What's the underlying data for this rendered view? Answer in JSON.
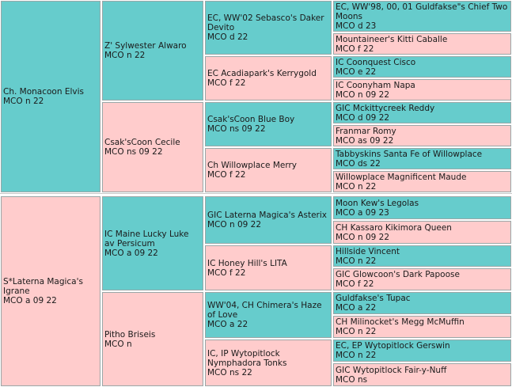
{
  "cats": {
    "s": {
      "name": "Ch. Monacoon Elvis",
      "code": "MCO n 22",
      "sex": "m"
    },
    "ss": {
      "name": "Z' Sylwester Alwaro",
      "code": "MCO n 22",
      "sex": "m"
    },
    "sd": {
      "name": "Csak'sCoon Cecile",
      "code": "MCO ns 09 22",
      "sex": "f"
    },
    "sss": {
      "name": "EC, WW'02 Sebasco's Daker Devito",
      "code": "MCO d 22",
      "sex": "m"
    },
    "ssd": {
      "name": "EC Acadiapark's Kerrygold",
      "code": "MCO f 22",
      "sex": "f"
    },
    "sds": {
      "name": "Csak'sCoon Blue Boy",
      "code": "MCO ns 09 22",
      "sex": "m"
    },
    "sdd": {
      "name": "Ch Willowplace Merry",
      "code": "MCO f 22",
      "sex": "f"
    },
    "ssss": {
      "name": "EC, WW'98, 00, 01 Guldfakse\"s Chief Two Moons",
      "code": "MCO d 23",
      "sex": "m"
    },
    "sssd": {
      "name": "Mountaineer's Kitti Caballe",
      "code": "MCO f 22",
      "sex": "f"
    },
    "ssds": {
      "name": "IC Coonquest Cisco",
      "code": "MCO e 22",
      "sex": "m"
    },
    "ssdd": {
      "name": "IC Coonyham Napa",
      "code": "MCO n 09 22",
      "sex": "f"
    },
    "sdss": {
      "name": "GIC Mckittycreek Reddy",
      "code": "MCO d 09 22",
      "sex": "m"
    },
    "sdsd": {
      "name": "Franmar Romy",
      "code": "MCO as 09 22",
      "sex": "f"
    },
    "sdds": {
      "name": "Tabbyskins Santa Fe of Willowplace",
      "code": "MCO ds 22",
      "sex": "m"
    },
    "sddd": {
      "name": "Willowplace Magnificent Maude",
      "code": "MCO n 22",
      "sex": "f"
    },
    "d": {
      "name": "S*Laterna Magica's Igrane",
      "code": "MCO a 09 22",
      "sex": "f"
    },
    "ds": {
      "name": "IC Maine Lucky Luke av Persicum",
      "code": "MCO a 09 22",
      "sex": "m"
    },
    "dd": {
      "name": "Pitho Briseis",
      "code": "MCO n",
      "sex": "f"
    },
    "dss": {
      "name": "GIC Laterna Magica's Asterix",
      "code": "MCO n 09 22",
      "sex": "m"
    },
    "dsd": {
      "name": "IC Honey Hill's LITA",
      "code": "MCO f 22",
      "sex": "f"
    },
    "dds": {
      "name": "WW'04, CH Chimera's Haze of Love",
      "code": "MCO a 22",
      "sex": "m"
    },
    "ddd": {
      "name": "IC, IP Wytopitlock Nymphadora Tonks",
      "code": "MCO ns 22",
      "sex": "f"
    },
    "dsss": {
      "name": "Moon Kew's Legolas",
      "code": "MCO a 09 23",
      "sex": "m"
    },
    "dssd": {
      "name": "CH Kassaro Kikimora Queen",
      "code": "MCO n 09 22",
      "sex": "f"
    },
    "dsds": {
      "name": "Hillside Vincent",
      "code": "MCO n 22",
      "sex": "m"
    },
    "dsdd": {
      "name": "GIC Glowcoon's Dark Papoose",
      "code": "MCO f 22",
      "sex": "f"
    },
    "ddss": {
      "name": "Guldfakse's Tupac",
      "code": "MCO a 22",
      "sex": "m"
    },
    "ddsd": {
      "name": "CH Milinocket's Megg McMuffin",
      "code": "MCO n 22",
      "sex": "f"
    },
    "ddds": {
      "name": "EC, EP Wytopitlock Gerswin",
      "code": "MCO n 22",
      "sex": "m"
    },
    "dddd": {
      "name": "GIC Wytopitlock Fair-y-Nuff",
      "code": "MCO ns",
      "sex": "f"
    }
  }
}
